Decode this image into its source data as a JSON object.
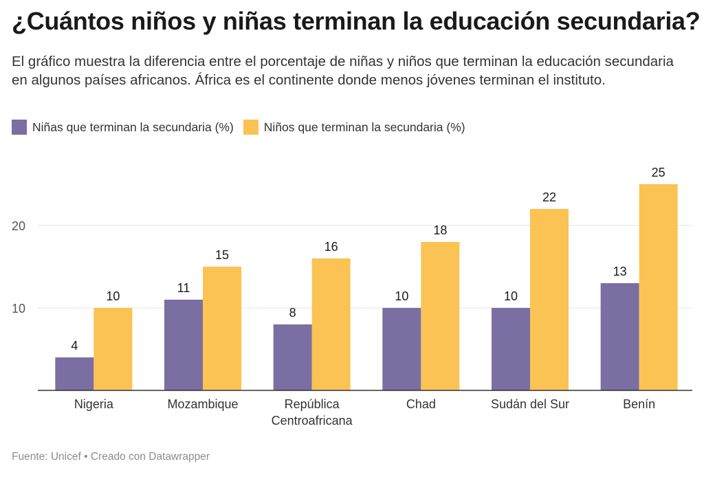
{
  "header": {
    "title": "¿Cuántos niños y niñas terminan la educación secundaria?",
    "subtitle": "El gráfico muestra la diferencia entre el porcentaje de niñas y niños que terminan la educación secundaria en algunos países africanos. África es el continente donde menos jóvenes terminan el instituto."
  },
  "footer": {
    "source": "Fuente: Unicef • Creado con Datawrapper"
  },
  "chart_data": {
    "type": "bar",
    "title": "¿Cuántos niños y niñas terminan la educación secundaria?",
    "categories": [
      [
        "Nigeria"
      ],
      [
        "Mozambique"
      ],
      [
        "República",
        "Centroafricana"
      ],
      [
        "Chad"
      ],
      [
        "Sudán del Sur"
      ],
      [
        "Benín"
      ]
    ],
    "series": [
      {
        "name": "Niñas que terminan la secundaria (%)",
        "color": "#7b6ea3",
        "values": [
          4,
          11,
          8,
          10,
          10,
          13
        ]
      },
      {
        "name": "Niños que terminan la secundaria (%)",
        "color": "#fbc354",
        "values": [
          10,
          15,
          16,
          18,
          22,
          25
        ]
      }
    ],
    "y_ticks": [
      10,
      20
    ],
    "ylim": [
      0,
      25
    ],
    "grid": true,
    "legend_position": "top-left",
    "data_labels": true
  }
}
